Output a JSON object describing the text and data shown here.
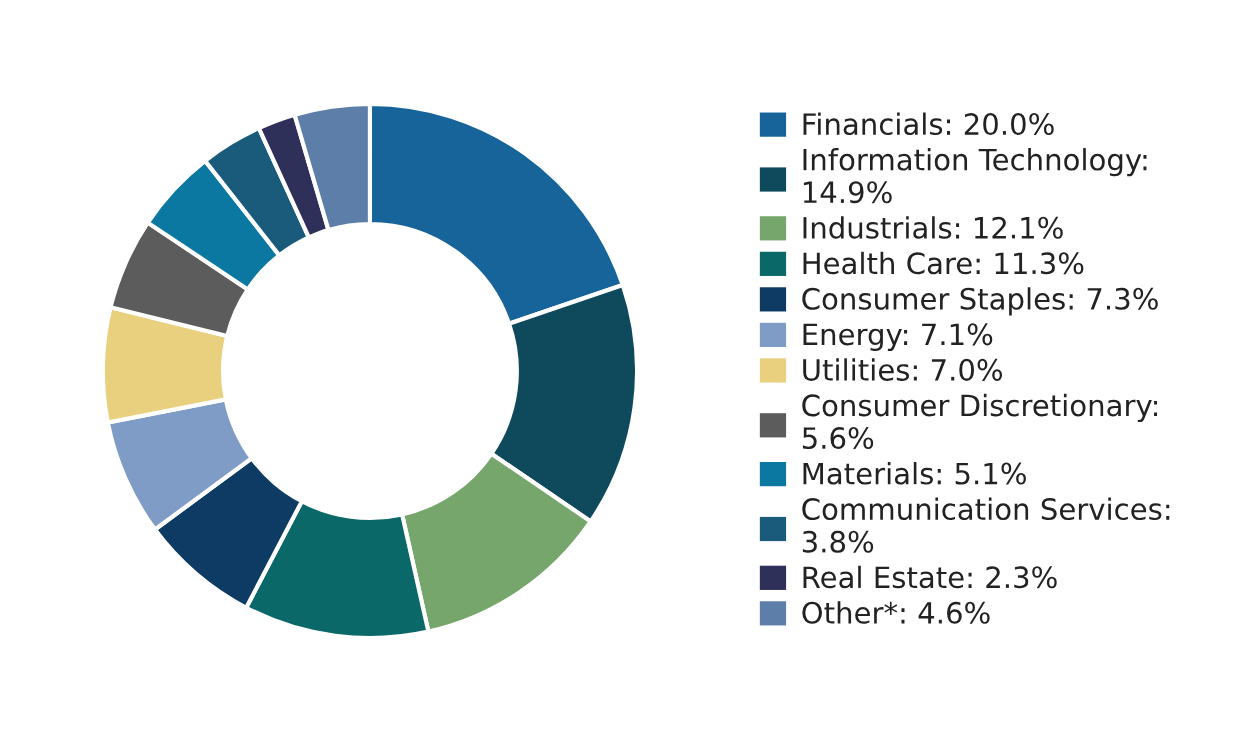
{
  "chart_data": {
    "type": "donut",
    "legend": "right",
    "categories": [
      "Financials: 20.0%",
      "Information Technology: 14.9%",
      "Industrials: 12.1%",
      "Health Care: 11.3%",
      "Consumer Staples: 7.3%",
      "Energy: 7.1%",
      "Utilities: 7.0%",
      "Consumer Discretionary: 5.6%",
      "Materials: 5.1%",
      "Communication Services: 3.8%",
      "Real Estate: 2.3%",
      "Other*: 4.6%"
    ],
    "values": [
      20.0,
      14.9,
      12.1,
      11.3,
      7.3,
      7.1,
      7.0,
      5.6,
      5.1,
      3.8,
      2.3,
      4.6
    ],
    "colors": [
      "#16649a",
      "#0e4a5c",
      "#76a66c",
      "#0b6868",
      "#0d3b63",
      "#7e9cc5",
      "#e8d07f",
      "#5c5c5c",
      "#0b78a1",
      "#1a5a7a",
      "#2f305a",
      "#5c7ea8"
    ]
  }
}
